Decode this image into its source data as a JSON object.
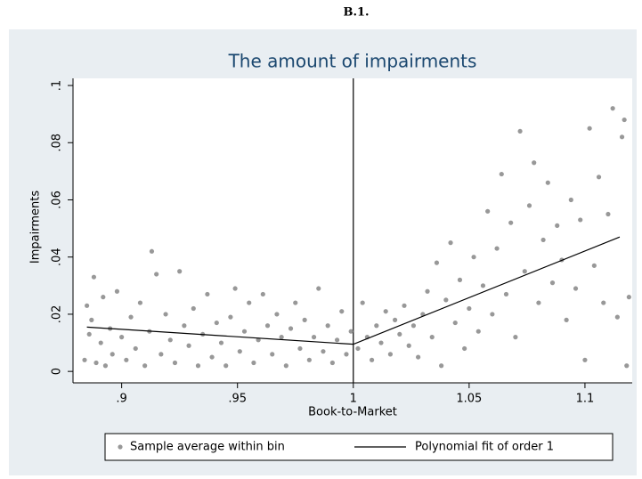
{
  "header": "B.1.",
  "chart_data": {
    "type": "scatter",
    "title": "The amount of impairments",
    "x_label": "Book-to-Market",
    "y_label": "Impairments",
    "xlim": [
      0.879,
      1.1204
    ],
    "ylim": [
      -0.004,
      0.1025
    ],
    "xticks": [
      {
        "value": 0.9,
        "label": ".9"
      },
      {
        "value": 0.95,
        "label": ".95"
      },
      1,
      {
        "value": 1.05,
        "label": "1.05"
      },
      {
        "value": 1.1,
        "label": "1.1"
      }
    ],
    "yticks": [
      0,
      {
        "value": 0.02,
        "label": ".02"
      },
      {
        "value": 0.04,
        "label": ".04"
      },
      {
        "value": 0.06,
        "label": ".06"
      },
      {
        "value": 0.08,
        "label": ".08"
      },
      {
        "value": 0.1,
        "label": ".1"
      }
    ],
    "vline": 1,
    "series": [
      {
        "name": "Sample average within bin",
        "color": "#989898",
        "kind": "scatter",
        "x": [
          0.884,
          0.885,
          0.886,
          0.887,
          0.888,
          0.889,
          0.891,
          0.892,
          0.893,
          0.895,
          0.896,
          0.898,
          0.9,
          0.902,
          0.904,
          0.906,
          0.908,
          0.91,
          0.912,
          0.913,
          0.915,
          0.917,
          0.919,
          0.921,
          0.923,
          0.925,
          0.927,
          0.929,
          0.931,
          0.933,
          0.935,
          0.937,
          0.939,
          0.941,
          0.943,
          0.945,
          0.947,
          0.949,
          0.951,
          0.953,
          0.955,
          0.957,
          0.959,
          0.961,
          0.963,
          0.965,
          0.967,
          0.969,
          0.971,
          0.973,
          0.975,
          0.977,
          0.979,
          0.981,
          0.983,
          0.985,
          0.987,
          0.989,
          0.991,
          0.993,
          0.995,
          0.997,
          0.999,
          1.002,
          1.004,
          1.006,
          1.008,
          1.01,
          1.012,
          1.014,
          1.016,
          1.018,
          1.02,
          1.022,
          1.024,
          1.026,
          1.028,
          1.03,
          1.032,
          1.034,
          1.036,
          1.038,
          1.04,
          1.042,
          1.044,
          1.046,
          1.048,
          1.05,
          1.052,
          1.054,
          1.056,
          1.058,
          1.06,
          1.062,
          1.064,
          1.066,
          1.068,
          1.07,
          1.072,
          1.074,
          1.076,
          1.078,
          1.08,
          1.082,
          1.084,
          1.086,
          1.088,
          1.09,
          1.092,
          1.094,
          1.096,
          1.098,
          1.1,
          1.102,
          1.104,
          1.106,
          1.108,
          1.11,
          1.112,
          1.114,
          1.116,
          1.117,
          1.118,
          1.119
        ],
        "values": [
          0.004,
          0.023,
          0.013,
          0.018,
          0.033,
          0.003,
          0.01,
          0.026,
          0.002,
          0.015,
          0.006,
          0.028,
          0.012,
          0.004,
          0.019,
          0.008,
          0.024,
          0.002,
          0.014,
          0.042,
          0.034,
          0.006,
          0.02,
          0.011,
          0.003,
          0.035,
          0.016,
          0.009,
          0.022,
          0.002,
          0.013,
          0.027,
          0.005,
          0.017,
          0.01,
          0.002,
          0.019,
          0.029,
          0.007,
          0.014,
          0.024,
          0.003,
          0.011,
          0.027,
          0.016,
          0.006,
          0.02,
          0.012,
          0.002,
          0.015,
          0.024,
          0.008,
          0.018,
          0.004,
          0.012,
          0.029,
          0.007,
          0.016,
          0.003,
          0.011,
          0.021,
          0.006,
          0.014,
          0.008,
          0.024,
          0.012,
          0.004,
          0.016,
          0.01,
          0.021,
          0.006,
          0.018,
          0.013,
          0.023,
          0.009,
          0.016,
          0.005,
          0.02,
          0.028,
          0.012,
          0.038,
          0.002,
          0.025,
          0.045,
          0.017,
          0.032,
          0.008,
          0.022,
          0.04,
          0.014,
          0.03,
          0.056,
          0.02,
          0.043,
          0.069,
          0.027,
          0.052,
          0.012,
          0.084,
          0.035,
          0.058,
          0.073,
          0.024,
          0.046,
          0.066,
          0.031,
          0.051,
          0.039,
          0.018,
          0.06,
          0.029,
          0.053,
          0.004,
          0.085,
          0.037,
          0.068,
          0.024,
          0.055,
          0.092,
          0.019,
          0.082,
          0.088,
          0.002,
          0.026
        ]
      },
      {
        "name": "Polynomial fit of order 1",
        "color": "#000000",
        "kind": "line",
        "x": [
          0.885,
          1.0,
          1.115
        ],
        "values": [
          0.0155,
          0.0095,
          0.047
        ]
      }
    ]
  }
}
